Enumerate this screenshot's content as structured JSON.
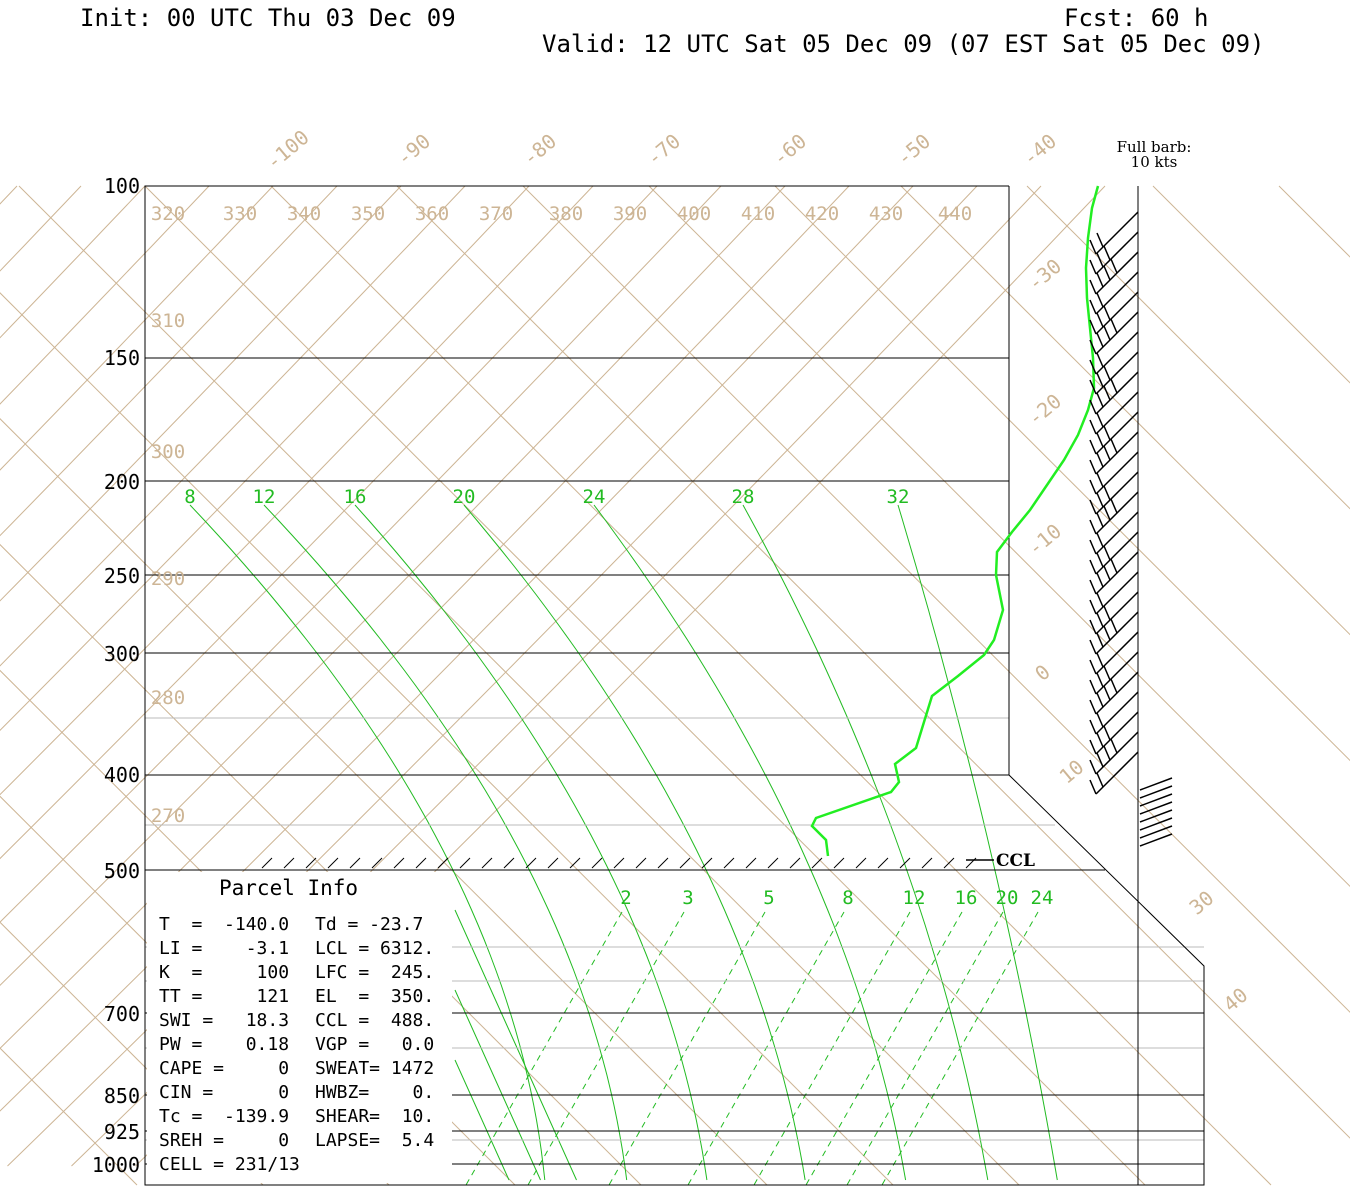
{
  "header": {
    "init": "Init: 00 UTC Thu 03 Dec 09",
    "fcst": "Fcst:   60 h",
    "valid": "Valid: 12 UTC Sat 05 Dec 09 (07 EST Sat 05 Dec 09)"
  },
  "barb_note": {
    "line1": "Full barb:",
    "line2": "10 kts"
  },
  "ccl_label": "CCL",
  "parcel_info": {
    "title": "Parcel Info",
    "rows": [
      [
        "T  =  -140.0",
        "Td = -23.7"
      ],
      [
        "LI =    -3.1",
        "LCL = 6312."
      ],
      [
        "K  =     100",
        "LFC =  245."
      ],
      [
        "TT =     121",
        "EL  =  350."
      ],
      [
        "SWI =   18.3",
        "CCL =  488."
      ],
      [
        "PW =    0.18",
        "VGP =   0.0"
      ],
      [
        "CAPE =     0",
        "SWEAT= 1472"
      ],
      [
        "CIN =      0",
        "HWBZ=    0."
      ],
      [
        "Tc =  -139.9",
        "SHEAR=  10."
      ],
      [
        "SREH =     0",
        "LAPSE=  5.4"
      ],
      [
        "CELL = 231/13",
        ""
      ]
    ]
  },
  "chart_data": {
    "type": "skew-t",
    "pressure_levels": [
      "100",
      "150",
      "200",
      "250",
      "300",
      "400",
      "500",
      "700",
      "850",
      "925",
      "1000"
    ],
    "isotherm_labels": [
      "-100",
      "-90",
      "-80",
      "-70",
      "-60",
      "-50",
      "-40",
      "-30",
      "-20",
      "-10",
      "0",
      "10",
      "30",
      "40"
    ],
    "theta_labels_top": [
      "320",
      "330",
      "340",
      "350",
      "360",
      "370",
      "380",
      "390",
      "400",
      "410",
      "420",
      "430",
      "440"
    ],
    "theta_labels_left": [
      "310",
      "300",
      "290",
      "280",
      "270"
    ],
    "theta_e_labels": [
      "8",
      "12",
      "16",
      "20",
      "24",
      "28",
      "32"
    ],
    "mixing_ratio_labels": [
      "2",
      "3",
      "5",
      "8",
      "12",
      "16",
      "20",
      "24"
    ],
    "colors": {
      "sounding": "#22ee22",
      "moist": "#22bb22",
      "background": "#cdb595",
      "frame": "#000000"
    }
  }
}
